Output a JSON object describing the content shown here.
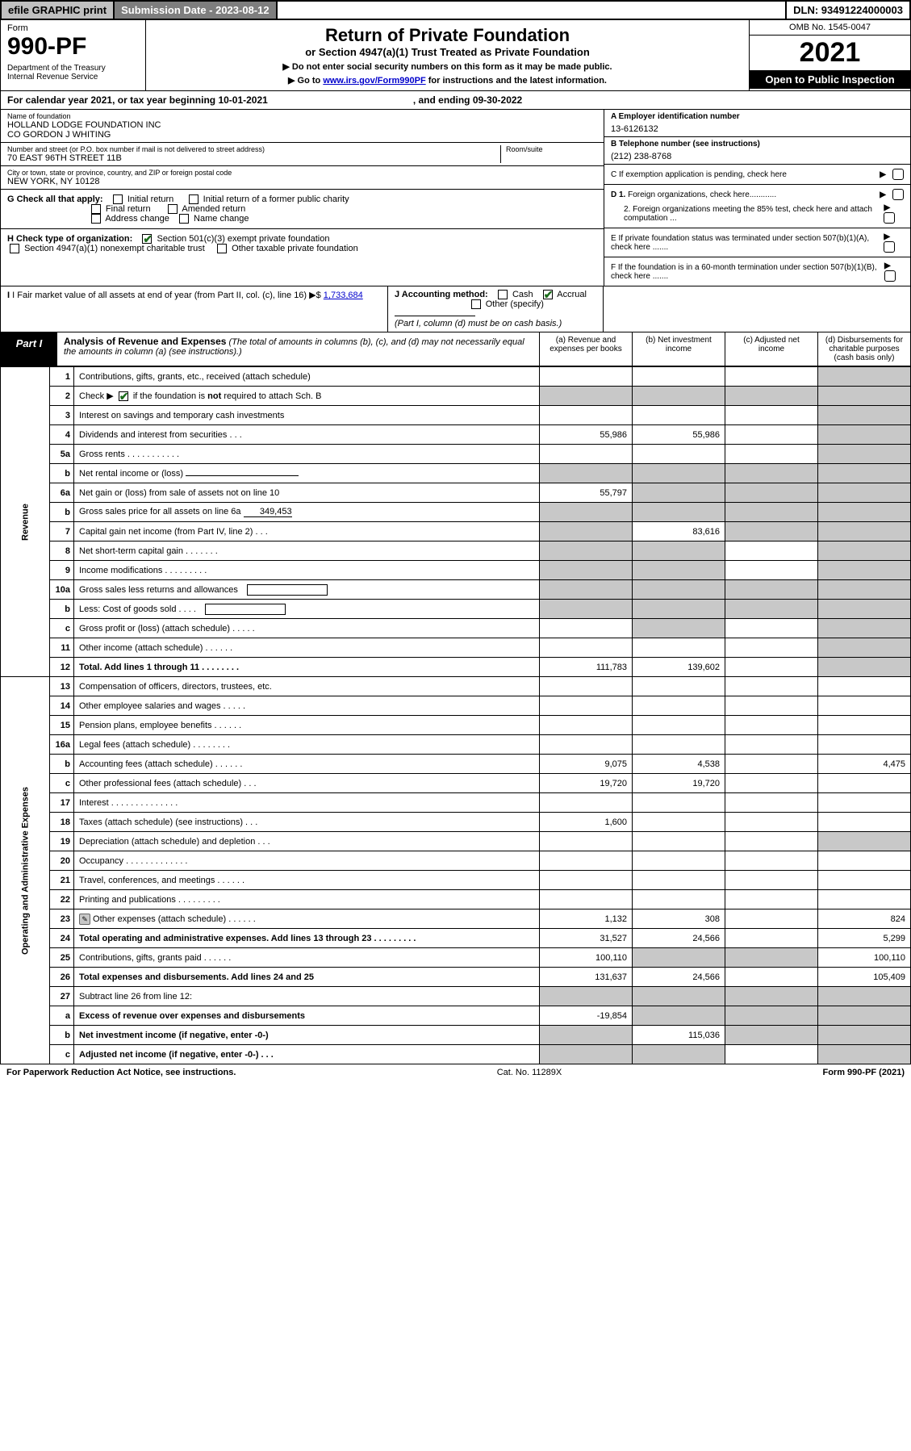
{
  "topbar": {
    "efile": "efile GRAPHIC print",
    "subdate_label": "Submission Date - 2023-08-12",
    "dln": "DLN: 93491224000003"
  },
  "header": {
    "form_label": "Form",
    "form_number": "990-PF",
    "dept": "Department of the Treasury",
    "irs": "Internal Revenue Service",
    "title": "Return of Private Foundation",
    "subtitle": "or Section 4947(a)(1) Trust Treated as Private Foundation",
    "note1": "▶ Do not enter social security numbers on this form as it may be made public.",
    "note2_pre": "▶ Go to ",
    "note2_link": "www.irs.gov/Form990PF",
    "note2_post": " for instructions and the latest information.",
    "omb": "OMB No. 1545-0047",
    "year": "2021",
    "open": "Open to Public Inspection"
  },
  "calyear": {
    "pre": "For calendar year 2021, or tax year beginning 10-01-2021",
    "mid": ", and ending 09-30-2022"
  },
  "info": {
    "name_label": "Name of foundation",
    "name_val1": "HOLLAND LODGE FOUNDATION INC",
    "name_val2": "CO GORDON J WHITING",
    "addr_label": "Number and street (or P.O. box number if mail is not delivered to street address)",
    "addr_val": "70 EAST 96TH STREET 11B",
    "room_label": "Room/suite",
    "city_label": "City or town, state or province, country, and ZIP or foreign postal code",
    "city_val": "NEW YORK, NY  10128",
    "ein_label": "A Employer identification number",
    "ein_val": "13-6126132",
    "tel_label": "B Telephone number (see instructions)",
    "tel_val": "(212) 238-8768",
    "c_label": "C If exemption application is pending, check here",
    "d1_label": "D 1. Foreign organizations, check here............",
    "d2_label": "2. Foreign organizations meeting the 85% test, check here and attach computation ...",
    "e_label": "E  If private foundation status was terminated under section 507(b)(1)(A), check here .......",
    "f_label": "F  If the foundation is in a 60-month termination under section 507(b)(1)(B), check here .......",
    "g_label": "G Check all that apply:",
    "g_opts": [
      "Initial return",
      "Initial return of a former public charity",
      "Final return",
      "Amended return",
      "Address change",
      "Name change"
    ],
    "h_label": "H Check type of organization:",
    "h_opt1": "Section 501(c)(3) exempt private foundation",
    "h_opt2": "Section 4947(a)(1) nonexempt charitable trust",
    "h_opt3": "Other taxable private foundation",
    "i_label": "I Fair market value of all assets at end of year (from Part II, col. (c), line 16)",
    "i_val": "1,733,684",
    "j_label": "J Accounting method:",
    "j_opt1": "Cash",
    "j_opt2": "Accrual",
    "j_other": "Other (specify)",
    "j_note": "(Part I, column (d) must be on cash basis.)"
  },
  "part1": {
    "label": "Part I",
    "title": "Analysis of Revenue and Expenses",
    "desc": "(The total of amounts in columns (b), (c), and (d) may not necessarily equal the amounts in column (a) (see instructions).)",
    "col_a": "(a)   Revenue and expenses per books",
    "col_b": "(b)    Net investment income",
    "col_c": "(c)   Adjusted net income",
    "col_d": "(d)   Disbursements for charitable purposes (cash basis only)"
  },
  "section_revenue": "Revenue",
  "section_expenses": "Operating and Administrative Expenses",
  "rows": [
    {
      "n": "1",
      "desc": "Contributions, gifts, grants, etc., received (attach schedule)",
      "a": "",
      "b": "",
      "c": "",
      "d": "",
      "shade_d": true
    },
    {
      "n": "2",
      "desc": "Check ▶ ☑ if the foundation is not required to attach Sch. B",
      "a": "",
      "b": "",
      "c": "",
      "d": "",
      "shade_all": true,
      "bold_not": true
    },
    {
      "n": "3",
      "desc": "Interest on savings and temporary cash investments",
      "a": "",
      "b": "",
      "c": "",
      "d": "",
      "shade_d": true
    },
    {
      "n": "4",
      "desc": "Dividends and interest from securities   .   .   .",
      "a": "55,986",
      "b": "55,986",
      "c": "",
      "d": "",
      "shade_d": true
    },
    {
      "n": "5a",
      "desc": "Gross rents   .   .   .   .   .   .   .   .   .   .   .",
      "a": "",
      "b": "",
      "c": "",
      "d": "",
      "shade_d": true
    },
    {
      "n": "b",
      "desc": "Net rental income or (loss)",
      "a": "",
      "b": "",
      "c": "",
      "d": "",
      "shade_all": true,
      "underline": true
    },
    {
      "n": "6a",
      "desc": "Net gain or (loss) from sale of assets not on line 10",
      "a": "55,797",
      "b": "",
      "c": "",
      "d": "",
      "shade_bcd": true
    },
    {
      "n": "b",
      "desc": "Gross sales price for all assets on line 6a",
      "a": "",
      "b": "",
      "c": "",
      "d": "",
      "shade_all": true,
      "inline_val": "349,453"
    },
    {
      "n": "7",
      "desc": "Capital gain net income (from Part IV, line 2)   .   .   .",
      "a": "",
      "b": "83,616",
      "c": "",
      "d": "",
      "shade_a": true,
      "shade_cd": true
    },
    {
      "n": "8",
      "desc": "Net short-term capital gain   .   .   .   .   .   .   .",
      "a": "",
      "b": "",
      "c": "",
      "d": "",
      "shade_ab": true,
      "shade_d": true
    },
    {
      "n": "9",
      "desc": "Income modifications  .   .   .   .   .   .   .   .   .",
      "a": "",
      "b": "",
      "c": "",
      "d": "",
      "shade_ab": true,
      "shade_d": true
    },
    {
      "n": "10a",
      "desc": "Gross sales less returns and allowances",
      "a": "",
      "b": "",
      "c": "",
      "d": "",
      "shade_all": true,
      "box": true
    },
    {
      "n": "b",
      "desc": "Less: Cost of goods sold   .   .   .   .",
      "a": "",
      "b": "",
      "c": "",
      "d": "",
      "shade_all": true,
      "box": true
    },
    {
      "n": "c",
      "desc": "Gross profit or (loss) (attach schedule)   .   .   .   .   .",
      "a": "",
      "b": "",
      "c": "",
      "d": "",
      "shade_b": true,
      "shade_d": true
    },
    {
      "n": "11",
      "desc": "Other income (attach schedule)   .   .   .   .   .   .",
      "a": "",
      "b": "",
      "c": "",
      "d": "",
      "shade_d": true
    },
    {
      "n": "12",
      "desc": "Total. Add lines 1 through 11   .   .   .   .   .   .   .   .",
      "a": "111,783",
      "b": "139,602",
      "c": "",
      "d": "",
      "shade_d": true,
      "bold": true
    },
    {
      "n": "13",
      "desc": "Compensation of officers, directors, trustees, etc.",
      "a": "",
      "b": "",
      "c": "",
      "d": ""
    },
    {
      "n": "14",
      "desc": "Other employee salaries and wages   .   .   .   .   .",
      "a": "",
      "b": "",
      "c": "",
      "d": ""
    },
    {
      "n": "15",
      "desc": "Pension plans, employee benefits  .   .   .   .   .   .",
      "a": "",
      "b": "",
      "c": "",
      "d": ""
    },
    {
      "n": "16a",
      "desc": "Legal fees (attach schedule)  .   .   .   .   .   .   .   .",
      "a": "",
      "b": "",
      "c": "",
      "d": ""
    },
    {
      "n": "b",
      "desc": "Accounting fees (attach schedule)  .   .   .   .   .   .",
      "a": "9,075",
      "b": "4,538",
      "c": "",
      "d": "4,475"
    },
    {
      "n": "c",
      "desc": "Other professional fees (attach schedule)   .   .   .",
      "a": "19,720",
      "b": "19,720",
      "c": "",
      "d": ""
    },
    {
      "n": "17",
      "desc": "Interest  .   .   .   .   .   .   .   .   .   .   .   .   .   .",
      "a": "",
      "b": "",
      "c": "",
      "d": ""
    },
    {
      "n": "18",
      "desc": "Taxes (attach schedule) (see instructions)   .   .   .",
      "a": "1,600",
      "b": "",
      "c": "",
      "d": ""
    },
    {
      "n": "19",
      "desc": "Depreciation (attach schedule) and depletion   .   .   .",
      "a": "",
      "b": "",
      "c": "",
      "d": "",
      "shade_d": true
    },
    {
      "n": "20",
      "desc": "Occupancy  .   .   .   .   .   .   .   .   .   .   .   .   .",
      "a": "",
      "b": "",
      "c": "",
      "d": ""
    },
    {
      "n": "21",
      "desc": "Travel, conferences, and meetings  .   .   .   .   .   .",
      "a": "",
      "b": "",
      "c": "",
      "d": ""
    },
    {
      "n": "22",
      "desc": "Printing and publications  .   .   .   .   .   .   .   .   .",
      "a": "",
      "b": "",
      "c": "",
      "d": ""
    },
    {
      "n": "23",
      "desc": "Other expenses (attach schedule)  .   .   .   .   .   .",
      "a": "1,132",
      "b": "308",
      "c": "",
      "d": "824",
      "attach": true
    },
    {
      "n": "24",
      "desc": "Total operating and administrative expenses. Add lines 13 through 23   .   .   .   .   .   .   .   .   .",
      "a": "31,527",
      "b": "24,566",
      "c": "",
      "d": "5,299",
      "bold": true
    },
    {
      "n": "25",
      "desc": "Contributions, gifts, grants paid   .   .   .   .   .   .",
      "a": "100,110",
      "b": "",
      "c": "",
      "d": "100,110",
      "shade_bc": true
    },
    {
      "n": "26",
      "desc": "Total expenses and disbursements. Add lines 24 and 25",
      "a": "131,637",
      "b": "24,566",
      "c": "",
      "d": "105,409",
      "bold": true
    },
    {
      "n": "27",
      "desc": "Subtract line 26 from line 12:",
      "a": "",
      "b": "",
      "c": "",
      "d": "",
      "shade_all": true
    },
    {
      "n": "a",
      "desc": "Excess of revenue over expenses and disbursements",
      "a": "-19,854",
      "b": "",
      "c": "",
      "d": "",
      "shade_bcd": true,
      "bold": true
    },
    {
      "n": "b",
      "desc": "Net investment income (if negative, enter -0-)",
      "a": "",
      "b": "115,036",
      "c": "",
      "d": "",
      "shade_a": true,
      "shade_cd": true,
      "bold": true
    },
    {
      "n": "c",
      "desc": "Adjusted net income (if negative, enter -0-)   .   .   .",
      "a": "",
      "b": "",
      "c": "",
      "d": "",
      "shade_ab": true,
      "shade_d": true,
      "bold": true
    }
  ],
  "footer": {
    "left": "For Paperwork Reduction Act Notice, see instructions.",
    "mid": "Cat. No. 11289X",
    "right": "Form 990-PF (2021)"
  },
  "colors": {
    "shade": "#c8c8c8",
    "link": "#0000cc",
    "check": "#1a6b1a",
    "topbar_gray": "#c0c0c0",
    "topbar_dark": "#7e7e7e"
  }
}
